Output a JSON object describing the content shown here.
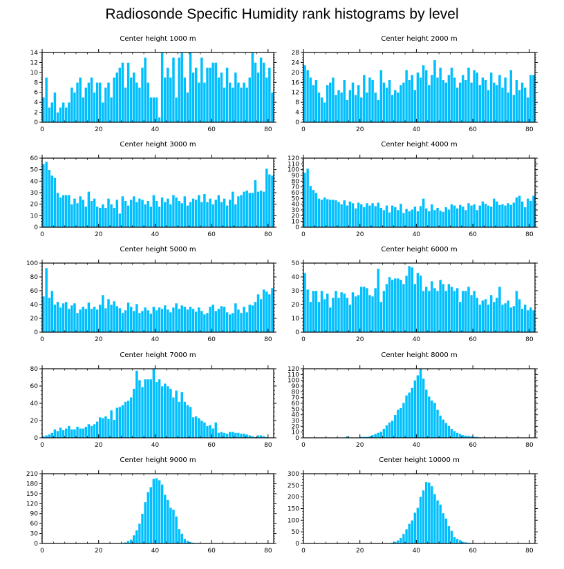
{
  "title": "Radiosonde Specific Humidity rank histograms by level",
  "colors": {
    "bar": "#00BFFF",
    "bar_stroke": "#ffffff",
    "axis": "#000000",
    "background": "#ffffff"
  },
  "chart_data": [
    {
      "type": "bar",
      "title": "Center height 1000 m",
      "xlim": [
        0,
        82
      ],
      "ylim": [
        0,
        14
      ],
      "xticks": [
        0,
        20,
        40,
        60,
        80
      ],
      "yticks": [
        0,
        2,
        4,
        6,
        8,
        10,
        12,
        14
      ],
      "values": [
        5,
        9,
        3,
        4,
        6,
        2,
        3,
        4,
        3,
        4,
        7,
        6,
        8,
        9,
        5,
        7,
        8,
        9,
        6,
        8,
        8,
        4,
        7,
        8,
        5,
        9,
        10,
        11,
        12,
        7,
        12,
        9,
        10,
        8,
        7,
        11,
        13,
        8,
        5,
        5,
        5,
        1,
        14,
        9,
        11,
        9,
        13,
        5,
        13,
        14,
        9,
        6,
        14,
        10,
        11,
        8,
        13,
        8,
        11,
        11,
        12,
        12,
        9,
        10,
        7,
        11,
        8,
        7,
        10,
        8,
        7,
        8,
        7,
        9,
        14,
        12,
        10,
        13,
        12,
        9,
        11,
        6
      ]
    },
    {
      "type": "bar",
      "title": "Center height 2000 m",
      "xlim": [
        0,
        82
      ],
      "ylim": [
        0,
        28
      ],
      "xticks": [
        0,
        20,
        40,
        60,
        80
      ],
      "yticks": [
        0,
        4,
        8,
        12,
        16,
        20,
        24,
        28
      ],
      "values": [
        23,
        21,
        18,
        15,
        17,
        12,
        10,
        8,
        15,
        16,
        18,
        11,
        13,
        12,
        17,
        9,
        13,
        16,
        11,
        15,
        10,
        19,
        12,
        18,
        17,
        12,
        9,
        21,
        16,
        14,
        17,
        11,
        13,
        12,
        15,
        16,
        21,
        17,
        19,
        13,
        20,
        18,
        23,
        21,
        15,
        19,
        25,
        18,
        22,
        17,
        16,
        19,
        22,
        18,
        14,
        16,
        19,
        17,
        22,
        16,
        21,
        20,
        15,
        18,
        17,
        13,
        20,
        16,
        15,
        19,
        14,
        18,
        12,
        21,
        11,
        17,
        13,
        16,
        14,
        10,
        19,
        19
      ]
    },
    {
      "type": "bar",
      "title": "Center height 3000 m",
      "xlim": [
        0,
        82
      ],
      "ylim": [
        0,
        60
      ],
      "xticks": [
        0,
        20,
        40,
        60,
        80
      ],
      "yticks": [
        0,
        10,
        20,
        30,
        40,
        50,
        60
      ],
      "values": [
        55,
        57,
        50,
        45,
        43,
        30,
        26,
        28,
        28,
        28,
        20,
        25,
        21,
        27,
        24,
        18,
        31,
        23,
        25,
        18,
        17,
        20,
        17,
        25,
        20,
        17,
        24,
        12,
        27,
        23,
        19,
        24,
        27,
        22,
        25,
        24,
        20,
        23,
        18,
        28,
        23,
        18,
        26,
        22,
        25,
        20,
        28,
        26,
        23,
        21,
        27,
        19,
        22,
        25,
        24,
        28,
        22,
        29,
        22,
        25,
        20,
        24,
        28,
        22,
        25,
        19,
        24,
        31,
        20,
        27,
        28,
        31,
        32,
        30,
        30,
        41,
        31,
        32,
        31,
        51,
        46,
        45
      ]
    },
    {
      "type": "bar",
      "title": "Center height 4000 m",
      "xlim": [
        0,
        82
      ],
      "ylim": [
        0,
        120
      ],
      "xticks": [
        0,
        20,
        40,
        60,
        80
      ],
      "yticks": [
        0,
        10,
        20,
        30,
        40,
        50,
        60,
        70,
        80,
        90,
        100,
        110,
        120
      ],
      "values": [
        95,
        102,
        72,
        65,
        60,
        50,
        48,
        52,
        49,
        48,
        48,
        47,
        44,
        40,
        47,
        38,
        45,
        42,
        33,
        43,
        40,
        35,
        42,
        38,
        42,
        37,
        43,
        34,
        30,
        38,
        26,
        38,
        35,
        30,
        41,
        25,
        32,
        28,
        31,
        36,
        28,
        37,
        50,
        33,
        28,
        40,
        30,
        34,
        29,
        27,
        35,
        31,
        40,
        38,
        33,
        39,
        36,
        30,
        42,
        38,
        40,
        30,
        38,
        45,
        41,
        38,
        36,
        50,
        45,
        39,
        40,
        38,
        42,
        39,
        43,
        52,
        55,
        45,
        35,
        50,
        46,
        55
      ]
    },
    {
      "type": "bar",
      "title": "Center height 5000 m",
      "xlim": [
        0,
        82
      ],
      "ylim": [
        0,
        100
      ],
      "xticks": [
        0,
        20,
        40,
        60,
        80
      ],
      "yticks": [
        0,
        20,
        40,
        60,
        80,
        100
      ],
      "values": [
        52,
        93,
        50,
        60,
        40,
        44,
        36,
        42,
        44,
        34,
        39,
        42,
        28,
        33,
        37,
        34,
        43,
        34,
        37,
        33,
        40,
        54,
        35,
        48,
        40,
        45,
        38,
        35,
        28,
        32,
        43,
        37,
        31,
        41,
        28,
        31,
        36,
        32,
        27,
        37,
        32,
        36,
        34,
        39,
        33,
        29,
        36,
        42,
        34,
        39,
        37,
        33,
        37,
        34,
        30,
        36,
        31,
        26,
        28,
        37,
        40,
        31,
        34,
        38,
        37,
        29,
        26,
        28,
        42,
        33,
        28,
        37,
        29,
        40,
        39,
        44,
        55,
        48,
        62,
        59,
        55,
        64
      ]
    },
    {
      "type": "bar",
      "title": "Center height 6000 m",
      "xlim": [
        0,
        82
      ],
      "ylim": [
        0,
        50
      ],
      "xticks": [
        0,
        20,
        40,
        60,
        80
      ],
      "yticks": [
        0,
        10,
        20,
        30,
        40,
        50
      ],
      "values": [
        43,
        31,
        22,
        30,
        30,
        22,
        30,
        24,
        28,
        18,
        25,
        30,
        25,
        29,
        28,
        25,
        20,
        29,
        26,
        27,
        33,
        33,
        32,
        27,
        26,
        32,
        46,
        22,
        30,
        35,
        40,
        38,
        39,
        39,
        38,
        35,
        41,
        48,
        47,
        35,
        43,
        41,
        30,
        33,
        30,
        37,
        32,
        30,
        38,
        35,
        30,
        35,
        33,
        30,
        32,
        22,
        30,
        30,
        33,
        27,
        30,
        25,
        20,
        23,
        24,
        20,
        27,
        22,
        25,
        33,
        20,
        21,
        23,
        18,
        19,
        30,
        24,
        17,
        20,
        16,
        18,
        16
      ]
    },
    {
      "type": "bar",
      "title": "Center height 7000 m",
      "xlim": [
        0,
        82
      ],
      "ylim": [
        0,
        80
      ],
      "xticks": [
        0,
        20,
        40,
        60,
        80
      ],
      "yticks": [
        0,
        20,
        40,
        60,
        80
      ],
      "values": [
        2,
        3,
        4,
        6,
        10,
        8,
        12,
        9,
        11,
        14,
        10,
        10,
        13,
        11,
        11,
        13,
        16,
        14,
        16,
        19,
        24,
        23,
        25,
        22,
        32,
        21,
        35,
        36,
        38,
        42,
        43,
        47,
        57,
        78,
        67,
        59,
        68,
        68,
        68,
        80,
        65,
        68,
        60,
        63,
        60,
        57,
        47,
        55,
        42,
        53,
        42,
        38,
        36,
        24,
        25,
        23,
        20,
        18,
        14,
        15,
        11,
        18,
        6,
        7,
        6,
        5,
        7,
        7,
        6,
        6,
        5,
        5,
        4,
        3,
        2,
        1,
        3,
        3,
        2,
        1,
        0,
        0
      ]
    },
    {
      "type": "bar",
      "title": "Center height 8000 m",
      "xlim": [
        0,
        82
      ],
      "ylim": [
        0,
        120
      ],
      "xticks": [
        0,
        20,
        40,
        60,
        80
      ],
      "yticks": [
        0,
        10,
        20,
        30,
        40,
        50,
        60,
        70,
        80,
        90,
        100,
        110,
        120
      ],
      "values": [
        0,
        0,
        0,
        0,
        0,
        0,
        0,
        0,
        0,
        0,
        0,
        0,
        0,
        0,
        1,
        3,
        0,
        0,
        1,
        1,
        2,
        2,
        2,
        3,
        5,
        7,
        9,
        11,
        16,
        22,
        27,
        30,
        40,
        49,
        52,
        61,
        74,
        79,
        87,
        100,
        109,
        120,
        103,
        84,
        72,
        65,
        61,
        49,
        39,
        32,
        26,
        21,
        16,
        12,
        9,
        7,
        5,
        4,
        4,
        3,
        2,
        2,
        1,
        1,
        1,
        1,
        0,
        0,
        0,
        0,
        0,
        0,
        0,
        0,
        0,
        0,
        0,
        0,
        0,
        0,
        0,
        0
      ]
    },
    {
      "type": "bar",
      "title": "Center height 9000 m",
      "xlim": [
        0,
        82
      ],
      "ylim": [
        0,
        210
      ],
      "xticks": [
        0,
        20,
        40,
        60,
        80
      ],
      "yticks": [
        0,
        30,
        60,
        90,
        120,
        150,
        180,
        210
      ],
      "values": [
        0,
        0,
        0,
        0,
        0,
        0,
        0,
        0,
        0,
        0,
        0,
        0,
        0,
        0,
        0,
        0,
        0,
        0,
        0,
        0,
        0,
        0,
        0,
        0,
        0,
        0,
        0,
        0,
        2,
        4,
        8,
        12,
        25,
        40,
        60,
        90,
        125,
        155,
        170,
        195,
        197,
        191,
        178,
        147,
        132,
        108,
        102,
        82,
        44,
        30,
        14,
        8,
        5,
        3,
        2,
        1,
        1,
        1,
        0,
        0,
        0,
        0,
        0,
        0,
        0,
        0,
        0,
        0,
        0,
        0,
        0,
        0,
        0,
        0,
        0,
        0,
        0,
        0,
        0,
        0,
        0,
        0
      ]
    },
    {
      "type": "bar",
      "title": "Center height 10000 m",
      "xlim": [
        0,
        82
      ],
      "ylim": [
        0,
        300
      ],
      "xticks": [
        0,
        20,
        40,
        60,
        80
      ],
      "yticks": [
        0,
        50,
        100,
        150,
        200,
        250,
        300
      ],
      "values": [
        0,
        0,
        0,
        0,
        0,
        0,
        0,
        0,
        0,
        0,
        0,
        0,
        0,
        0,
        0,
        0,
        0,
        0,
        0,
        0,
        0,
        0,
        0,
        0,
        0,
        0,
        0,
        0,
        0,
        0,
        2,
        4,
        8,
        14,
        25,
        42,
        62,
        85,
        100,
        133,
        154,
        201,
        229,
        265,
        263,
        247,
        213,
        186,
        168,
        131,
        108,
        75,
        55,
        28,
        20,
        15,
        8,
        6,
        4,
        3,
        2,
        1,
        0,
        0,
        0,
        0,
        0,
        0,
        0,
        0,
        0,
        0,
        0,
        0,
        0,
        0,
        0,
        0,
        0,
        0,
        0,
        0
      ]
    }
  ]
}
